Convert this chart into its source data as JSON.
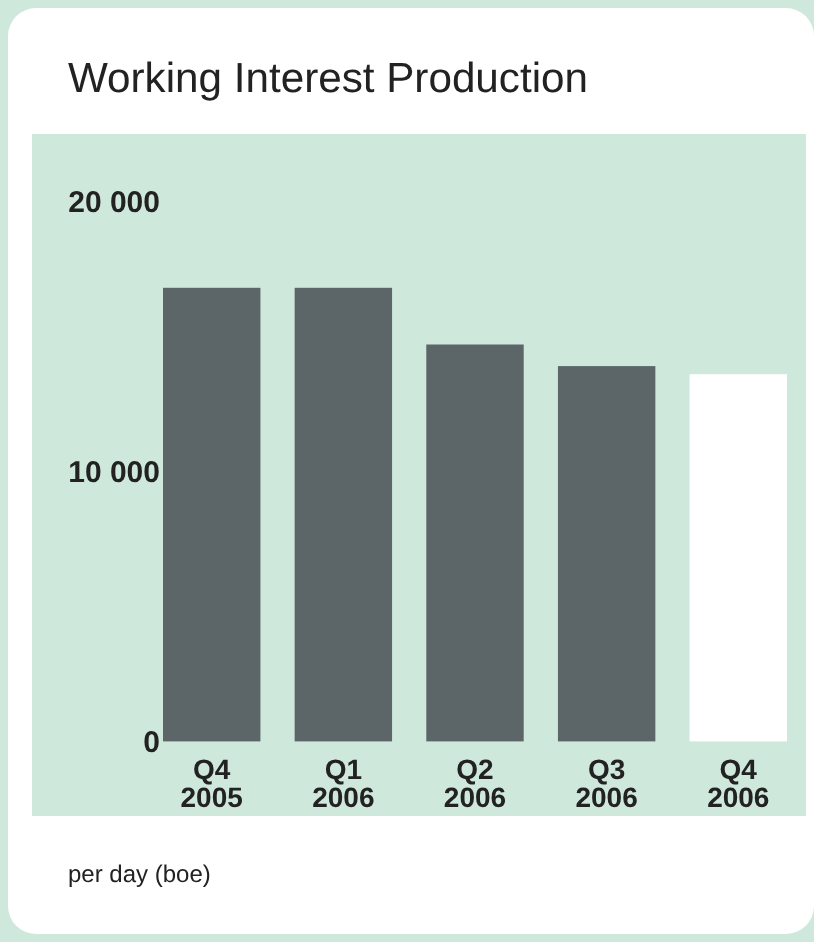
{
  "chart_data": {
    "type": "bar",
    "title": "Working Interest Production",
    "categories": [
      "Q4 2005",
      "Q1 2006",
      "Q2 2006",
      "Q3 2006",
      "Q4 2006"
    ],
    "values": [
      16800,
      16800,
      14700,
      13900,
      13600
    ],
    "colors": [
      "#5c6668",
      "#5c6668",
      "#5c6668",
      "#5c6668",
      "#ffffff"
    ],
    "ylim": [
      0,
      20000
    ],
    "yticks": [
      {
        "value": 0,
        "label": "0"
      },
      {
        "value": 10000,
        "label": "10 000"
      },
      {
        "value": 20000,
        "label": "20 000"
      }
    ],
    "grid": false,
    "annotations": [
      "per day (boe)"
    ]
  }
}
